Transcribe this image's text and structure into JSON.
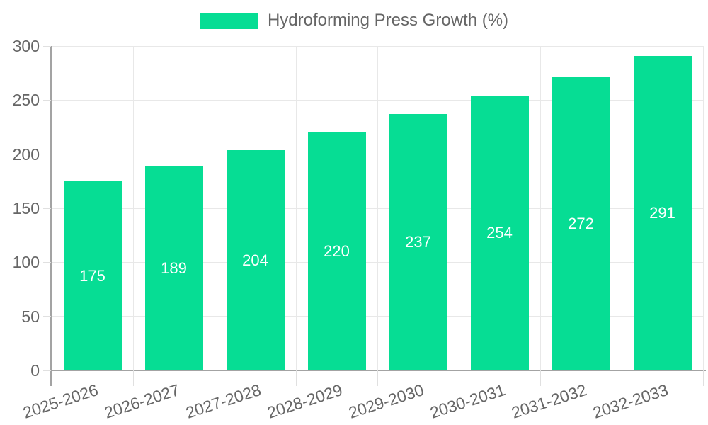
{
  "legend": {
    "label": "Hydroforming Press Growth (%)"
  },
  "chart_data": {
    "type": "bar",
    "title": "Hydroforming Press Growth (%)",
    "categories": [
      "2025-2026",
      "2026-2027",
      "2027-2028",
      "2028-2029",
      "2029-2030",
      "2030-2031",
      "2031-2032",
      "2032-2033"
    ],
    "values": [
      175,
      189,
      204,
      220,
      237,
      254,
      272,
      291
    ],
    "series": [
      {
        "name": "Hydroforming Press Growth (%)",
        "values": [
          175,
          189,
          204,
          220,
          237,
          254,
          272,
          291
        ]
      }
    ],
    "xlabel": "",
    "ylabel": "",
    "ylim": [
      0,
      300
    ],
    "yticks": [
      0,
      50,
      100,
      150,
      200,
      250,
      300
    ],
    "grid": true,
    "legend_position": "top-center",
    "x_tick_rotation_deg": -18,
    "data_labels": "inside-center",
    "colors": {
      "bar": "#06dd94",
      "bar_label": "#ffffff",
      "axis_line": "#a3a3a3",
      "grid_line": "#e8e8e8",
      "tick_text": "#666666",
      "background": "#ffffff"
    }
  }
}
